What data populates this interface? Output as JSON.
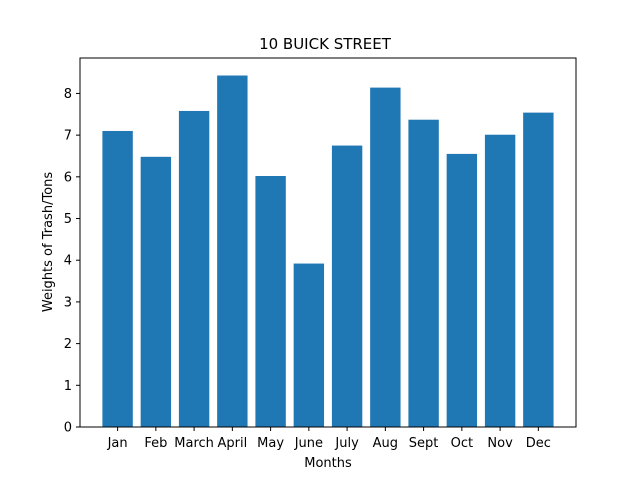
{
  "chart_data": {
    "type": "bar",
    "title": "10 BUICK STREET",
    "xlabel": "Months",
    "ylabel": "Weights of Trash/Tons",
    "categories": [
      "Jan",
      "Feb",
      "March",
      "April",
      "May",
      "June",
      "July",
      "Aug",
      "Sept",
      "Oct",
      "Nov",
      "Dec"
    ],
    "values": [
      7.1,
      6.48,
      7.58,
      8.43,
      6.02,
      3.92,
      6.75,
      8.14,
      7.37,
      6.55,
      7.01,
      7.54
    ],
    "ylim": [
      0,
      8.85
    ],
    "yticks": [
      0,
      1,
      2,
      3,
      4,
      5,
      6,
      7,
      8
    ],
    "bar_color": "#1f77b4",
    "grid": false,
    "legend": "none"
  }
}
